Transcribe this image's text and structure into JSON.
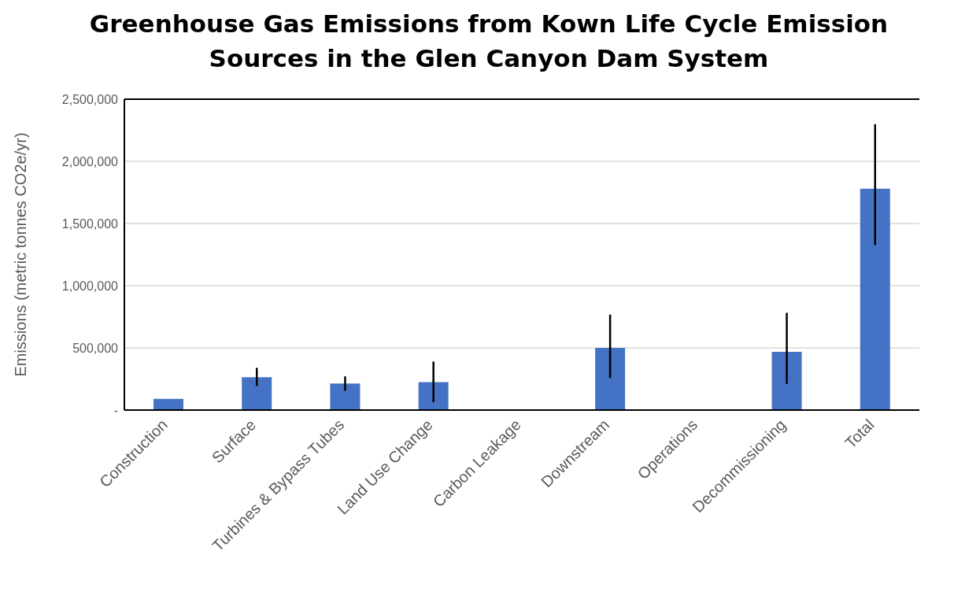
{
  "chart_data": {
    "type": "bar",
    "title": "Greenhouse Gas Emissions from Kown Life Cycle Emission Sources in the Glen Canyon Dam System",
    "ylabel": "Emissions (metric tonnes CO2e/yr)",
    "categories": [
      "Construction",
      "Surface",
      "Turbines & Bypass Tubes",
      "Land Use Change",
      "Carbon Leakage",
      "Downstream",
      "Operations",
      "Decommissioning",
      "Total"
    ],
    "values": [
      90000,
      264000,
      214000,
      224000,
      null,
      500000,
      null,
      469000,
      1780000
    ],
    "errors": [
      null,
      [
        195000,
        340000
      ],
      [
        155000,
        271000
      ],
      [
        64000,
        390000
      ],
      null,
      [
        258000,
        768000
      ],
      null,
      [
        211000,
        782000
      ],
      [
        1327000,
        2299000
      ]
    ],
    "color": "#4472c4",
    "ylim": [
      0,
      2500000
    ],
    "yticks": [
      {
        "value": 0,
        "label": "-"
      },
      {
        "value": 500000,
        "label": "500,000"
      },
      {
        "value": 1000000,
        "label": "1,000,000"
      },
      {
        "value": 1500000,
        "label": "1,500,000"
      },
      {
        "value": 2000000,
        "label": "2,000,000"
      },
      {
        "value": 2500000,
        "label": "2,500,000"
      }
    ],
    "grid": "y"
  }
}
